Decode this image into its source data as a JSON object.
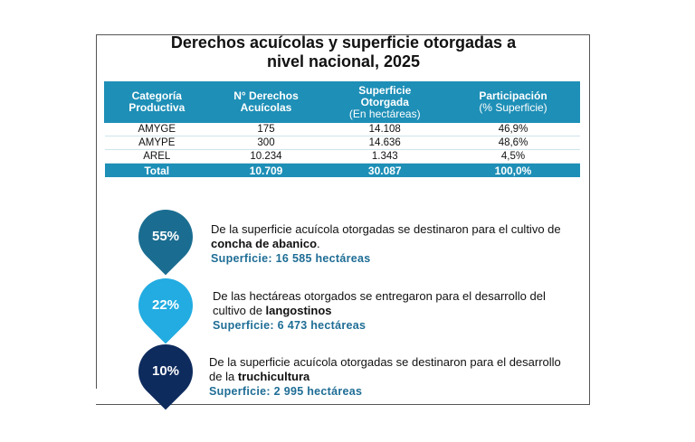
{
  "title_line1": "Derechos acuícolas y superficie otorgadas a",
  "title_line2": "nivel nacional, 2025",
  "table": {
    "headers": [
      {
        "line1": "Categoría",
        "line2": "Productiva",
        "line3": ""
      },
      {
        "line1": "N° Derechos",
        "line2": "Acuícolas",
        "line3": ""
      },
      {
        "line1": "Superficie",
        "line2": "Otorgada",
        "line3": "(En hectáreas)"
      },
      {
        "line1": "Participación",
        "line2": "(% Superficie)",
        "line3": ""
      }
    ],
    "rows": [
      [
        "AMYGE",
        "175",
        "14.108",
        "46,9%"
      ],
      [
        "AMYPE",
        "300",
        "14.636",
        "48,6%"
      ],
      [
        "AREL",
        "10.234",
        "1.343",
        "4,5%"
      ]
    ],
    "total": [
      "Total",
      "10.709",
      "30.087",
      "100,0%"
    ]
  },
  "items": [
    {
      "percent": "55%",
      "color": "#1a6d91",
      "text_before": "De la superficie acuícola otorgadas se destinaron para el cultivo de ",
      "bold": "concha de abanico",
      "text_after": ".",
      "surface": "Superficie: 16 585 hectáreas"
    },
    {
      "percent": "22%",
      "color": "#22ace2",
      "text_before": "De las hectáreas otorgados se entregaron para el desarrollo del cultivo de ",
      "bold": "langostinos",
      "text_after": "",
      "surface": "Superficie: 6 473 hectáreas"
    },
    {
      "percent": "10%",
      "color": "#0e2b5e",
      "text_before": "De la superficie acuícola otorgadas se destinaron para el desarrollo de la ",
      "bold": "truchicultura",
      "text_after": "",
      "surface": "Superficie: 2 995 hectáreas"
    }
  ]
}
